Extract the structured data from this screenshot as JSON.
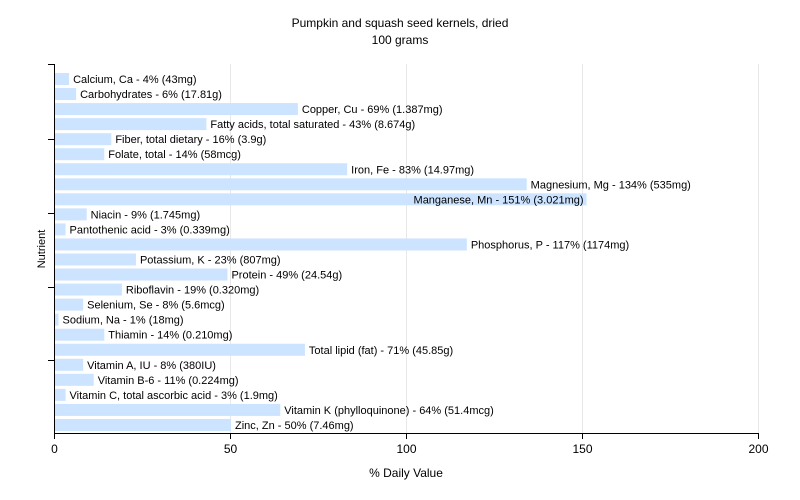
{
  "chart_data": {
    "type": "bar",
    "orientation": "horizontal",
    "title": "Pumpkin and squash seed kernels, dried",
    "subtitle": "100 grams",
    "xlabel": "% Daily Value",
    "ylabel": "Nutrient",
    "xlim": [
      0,
      200
    ],
    "xticks": [
      0,
      50,
      100,
      150,
      200
    ],
    "grid": "vertical",
    "bar_color": "#cce4ff",
    "grid_color": "#e8e8e8",
    "categories": [
      "Calcium, Ca",
      "Carbohydrates",
      "Copper, Cu",
      "Fatty acids, total saturated",
      "Fiber, total dietary",
      "Folate, total",
      "Iron, Fe",
      "Magnesium, Mg",
      "Manganese, Mn",
      "Niacin",
      "Pantothenic acid",
      "Phosphorus, P",
      "Potassium, K",
      "Protein",
      "Riboflavin",
      "Selenium, Se",
      "Sodium, Na",
      "Thiamin",
      "Total lipid (fat)",
      "Vitamin A, IU",
      "Vitamin B-6",
      "Vitamin C, total ascorbic acid",
      "Vitamin K (phylloquinone)",
      "Zinc, Zn"
    ],
    "values": [
      4,
      6,
      69,
      43,
      16,
      14,
      83,
      134,
      151,
      9,
      3,
      117,
      23,
      49,
      19,
      8,
      1,
      14,
      71,
      8,
      11,
      3,
      64,
      50
    ],
    "labels": [
      "Calcium, Ca - 4% (43mg)",
      "Carbohydrates - 6% (17.81g)",
      "Copper, Cu - 69% (1.387mg)",
      "Fatty acids, total saturated - 43% (8.674g)",
      "Fiber, total dietary - 16% (3.9g)",
      "Folate, total - 14% (58mcg)",
      "Iron, Fe - 83% (14.97mg)",
      "Magnesium, Mg - 134% (535mg)",
      "Manganese, Mn - 151% (3.021mg)",
      "Niacin - 9% (1.745mg)",
      "Pantothenic acid - 3% (0.339mg)",
      "Phosphorus, P - 117% (1174mg)",
      "Potassium, K - 23% (807mg)",
      "Protein - 49% (24.54g)",
      "Riboflavin - 19% (0.320mg)",
      "Selenium, Se - 8% (5.6mcg)",
      "Sodium, Na - 1% (18mg)",
      "Thiamin - 14% (0.210mg)",
      "Total lipid (fat) - 71% (45.85g)",
      "Vitamin A, IU - 8% (380IU)",
      "Vitamin B-6 - 11% (0.224mg)",
      "Vitamin C, total ascorbic acid - 3% (1.9mg)",
      "Vitamin K (phylloquinone) - 64% (51.4mcg)",
      "Zinc, Zn - 50% (7.46mg)"
    ]
  }
}
